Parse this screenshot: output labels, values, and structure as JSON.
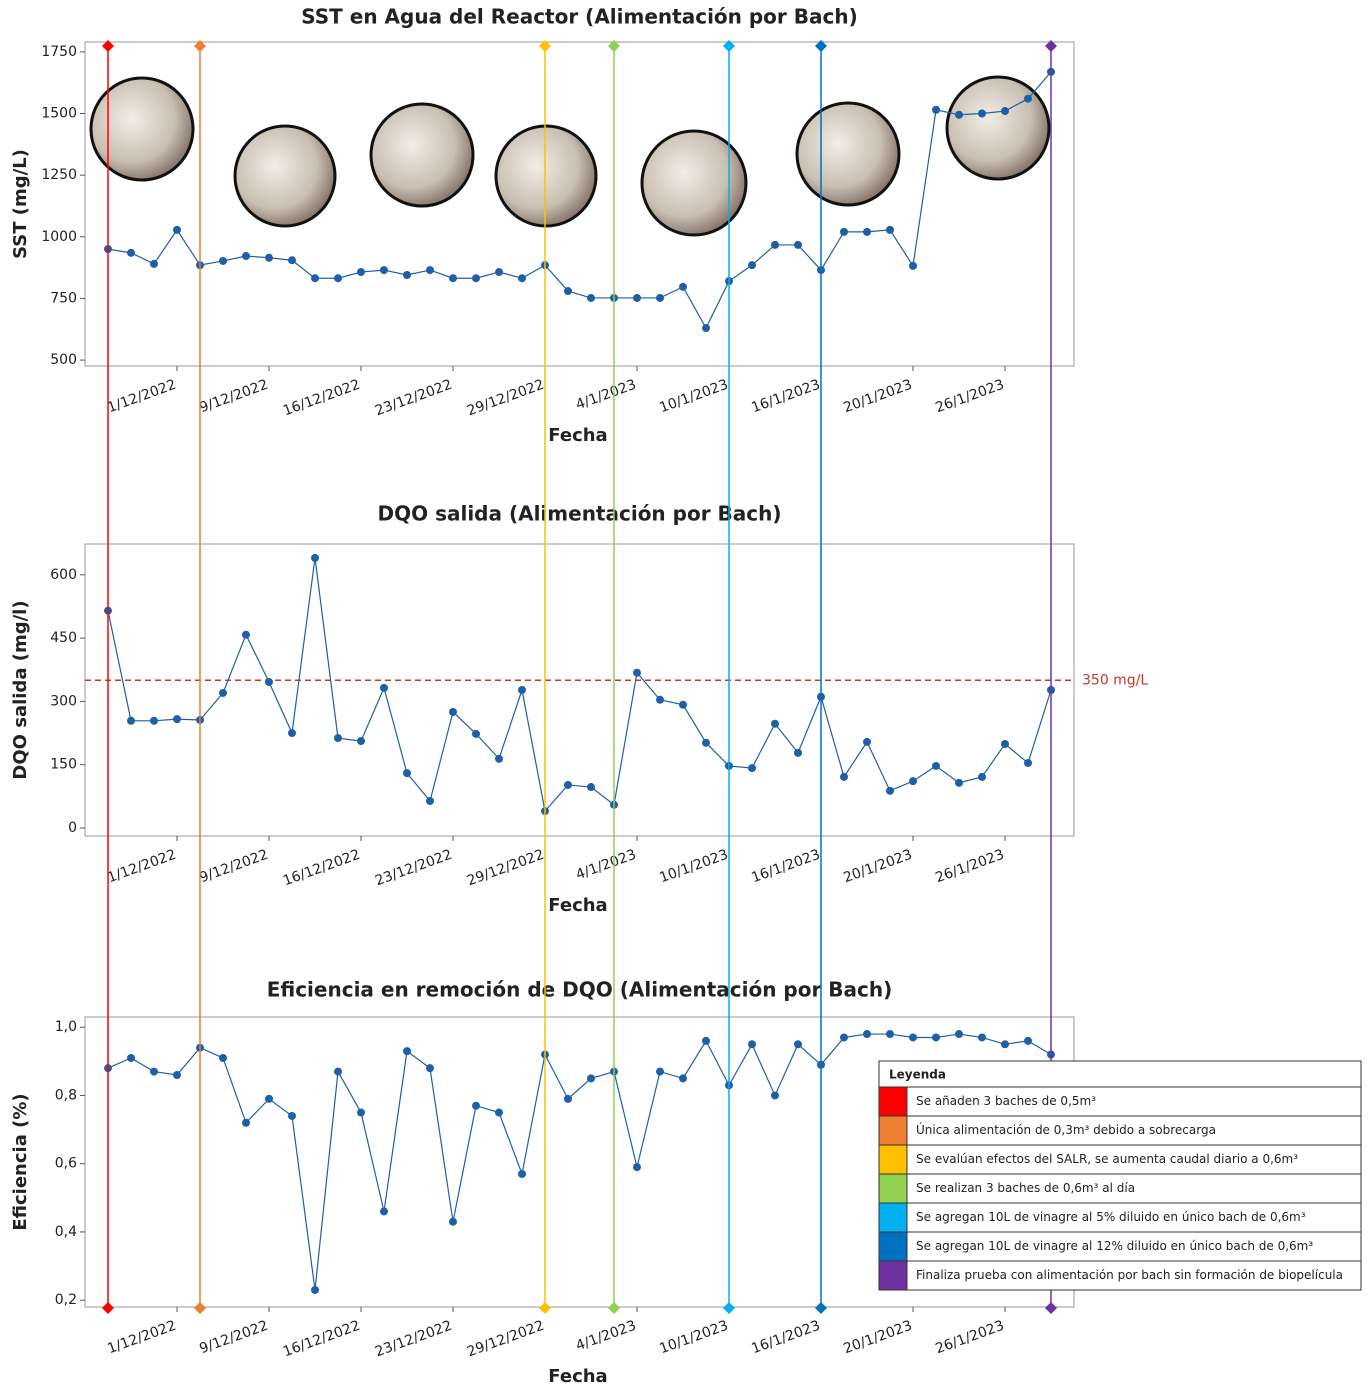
{
  "chart_data": [
    {
      "type": "line",
      "title": "SST en Agua del Reactor (Alimentación por Bach)",
      "x_label": "Fecha",
      "y_label": "SST (mg/L)",
      "categories": [
        null,
        null,
        null,
        "1/12/2022",
        null,
        null,
        null,
        "9/12/2022",
        null,
        null,
        null,
        "16/12/2022",
        null,
        null,
        null,
        "23/12/2022",
        null,
        null,
        null,
        "29/12/2022",
        null,
        null,
        null,
        "4/1/2023",
        null,
        null,
        null,
        "10/1/2023",
        null,
        null,
        null,
        "16/1/2023",
        null,
        null,
        null,
        "20/1/2023",
        null,
        null,
        null,
        "26/1/2023",
        null,
        null
      ],
      "series": [
        {
          "color": "#1f5fa8",
          "values": [
            950,
            935,
            890,
            1028,
            885,
            902,
            922,
            915,
            905,
            832,
            832,
            857,
            865,
            845,
            865,
            832,
            832,
            857,
            832,
            885,
            780,
            752,
            752,
            752,
            752,
            797,
            630,
            820,
            885,
            967,
            967,
            865,
            1020,
            1020,
            1028,
            882,
            1515,
            1495,
            1500,
            1510,
            1560,
            1669
          ]
        }
      ],
      "ylim": [
        476,
        1790
      ],
      "yticks": [
        500,
        750,
        1000,
        1250,
        1500,
        1750
      ]
    },
    {
      "type": "line",
      "title": "DQO salida (Alimentación por Bach)",
      "x_label": "Fecha",
      "y_label": "DQO salida (mg/l)",
      "categories": [
        null,
        null,
        null,
        "1/12/2022",
        null,
        null,
        null,
        "9/12/2022",
        null,
        null,
        null,
        "16/12/2022",
        null,
        null,
        null,
        "23/12/2022",
        null,
        null,
        null,
        "29/12/2022",
        null,
        null,
        null,
        "4/1/2023",
        null,
        null,
        null,
        "10/1/2023",
        null,
        null,
        null,
        "16/1/2023",
        null,
        null,
        null,
        "20/1/2023",
        null,
        null,
        null,
        "26/1/2023",
        null,
        null
      ],
      "series": [
        {
          "color": "#1f5fa8",
          "values": [
            515,
            254,
            254,
            258,
            256,
            320,
            458,
            346,
            225,
            640,
            213,
            206,
            332,
            130,
            64,
            275,
            223,
            164,
            327,
            40,
            102,
            97,
            55,
            368,
            304,
            292,
            202,
            147,
            142,
            247,
            178,
            311,
            121,
            204,
            88,
            111,
            147,
            107,
            121,
            199,
            154,
            327
          ]
        }
      ],
      "threshold": {
        "value": 350,
        "label": "350 mg/L",
        "color": "#c0392b"
      },
      "ylim": [
        -19,
        673
      ],
      "yticks": [
        0,
        150,
        300,
        450,
        600
      ]
    },
    {
      "type": "line",
      "title": "Eficiencia en remoción de DQO (Alimentación por Bach)",
      "x_label": "Fecha",
      "y_label": "Eficiencia (%)",
      "categories": [
        null,
        null,
        null,
        "1/12/2022",
        null,
        null,
        null,
        "9/12/2022",
        null,
        null,
        null,
        "16/12/2022",
        null,
        null,
        null,
        "23/12/2022",
        null,
        null,
        null,
        "29/12/2022",
        null,
        null,
        null,
        "4/1/2023",
        null,
        null,
        null,
        "10/1/2023",
        null,
        null,
        null,
        "16/1/2023",
        null,
        null,
        null,
        "20/1/2023",
        null,
        null,
        null,
        "26/1/2023",
        null,
        null
      ],
      "series": [
        {
          "color": "#1f5fa8",
          "values": [
            0.88,
            0.91,
            0.87,
            0.86,
            0.94,
            0.91,
            0.72,
            0.79,
            0.74,
            0.23,
            0.87,
            0.75,
            0.46,
            0.93,
            0.88,
            0.43,
            0.77,
            0.75,
            0.57,
            0.92,
            0.79,
            0.85,
            0.87,
            0.59,
            0.87,
            0.85,
            0.96,
            0.83,
            0.95,
            0.8,
            0.95,
            0.89,
            0.97,
            0.98,
            0.98,
            0.97,
            0.97,
            0.98,
            0.97,
            0.95,
            0.96,
            0.92
          ]
        }
      ],
      "ylim": [
        0.18,
        1.03
      ],
      "yticks": [
        {
          "value": 0.2,
          "label": "0,2"
        },
        {
          "value": 0.4,
          "label": "0,4"
        },
        {
          "value": 0.6,
          "label": "0,6"
        },
        {
          "value": 0.8,
          "label": "0,8"
        },
        {
          "value": 1.0,
          "label": "1,0"
        }
      ]
    }
  ],
  "xlim": [
    -1,
    42
  ],
  "legend": {
    "title": "Leyenda",
    "items": [
      {
        "name": "Se añaden 3 baches de 0,5m³",
        "color": "#ff0000",
        "x": 0
      },
      {
        "name": "Única alimentación de 0,3m³ debido a sobrecarga",
        "color": "#ed7d31",
        "x": 4
      },
      {
        "name": "Se evalúan efectos del SALR, se aumenta caudal diario a 0,6m³",
        "color": "#ffc000",
        "x": 19
      },
      {
        "name": "Se realizan 3 baches de 0,6m³ al día",
        "color": "#92d050",
        "x": 22
      },
      {
        "name": "Se agregan 10L de vinagre al 5% diluido en único bach de 0,6m³",
        "color": "#00b0f0",
        "x": 27
      },
      {
        "name": "Se agregan 10L de vinagre al 12% diluido en único bach de 0,6m³",
        "color": "#0070c0",
        "x": 31
      },
      {
        "name": "Finaliza prueba con alimentación por bach sin formación de biopelícula",
        "color": "#7030a0",
        "x": 41
      }
    ]
  }
}
